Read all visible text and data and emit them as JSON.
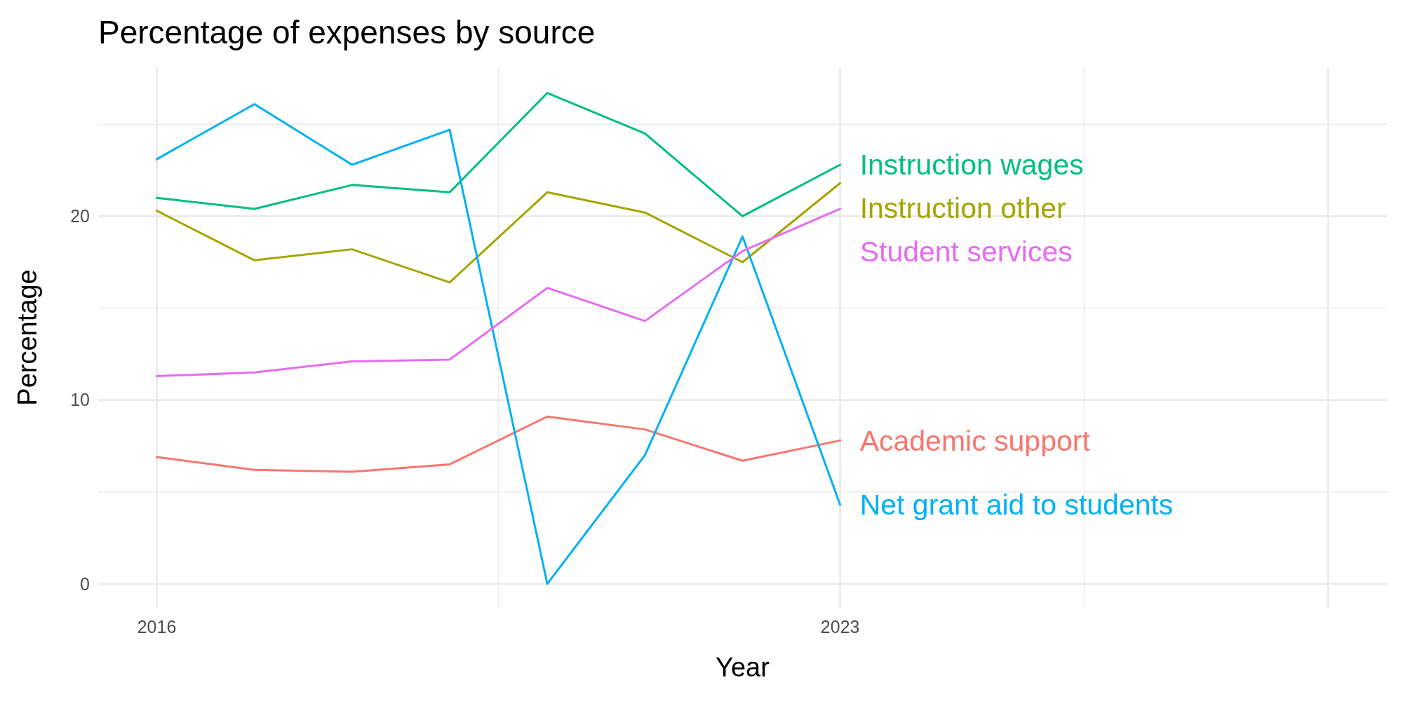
{
  "chart_data": {
    "type": "line",
    "title": "Percentage of expenses by source",
    "xlabel": "Year",
    "ylabel": "Percentage",
    "x": [
      2016,
      2017,
      2018,
      2019,
      2020,
      2021,
      2022,
      2023
    ],
    "xlim": [
      2015.4,
      2028.6
    ],
    "xticks": [
      2016,
      {
        "value": 2019.5,
        "label": null
      },
      2023,
      {
        "value": 2025.5,
        "label": null
      },
      {
        "value": 2028,
        "label": null
      }
    ],
    "ylim": [
      -1.3,
      28.1
    ],
    "yticks": [
      0,
      {
        "value": 5,
        "label": null
      },
      10,
      {
        "value": 15,
        "label": null
      },
      20,
      {
        "value": 25,
        "label": null
      }
    ],
    "grid": true,
    "marker": "none",
    "line_style": "solid",
    "series": [
      {
        "name": "Academic support",
        "color": "#f8766d",
        "values": [
          6.9,
          6.2,
          6.1,
          6.5,
          9.1,
          8.4,
          6.7,
          7.8
        ]
      },
      {
        "name": "Instruction other",
        "color": "#a3a500",
        "values": [
          20.3,
          17.6,
          18.2,
          16.4,
          21.3,
          20.2,
          17.5,
          21.8
        ]
      },
      {
        "name": "Instruction wages",
        "color": "#00bf7d",
        "values": [
          21.0,
          20.4,
          21.7,
          21.3,
          26.7,
          24.5,
          20.0,
          22.8
        ]
      },
      {
        "name": "Net grant aid to students",
        "color": "#00b0f6",
        "values": [
          23.1,
          26.1,
          22.8,
          24.7,
          0,
          7.0,
          18.9,
          4.3
        ]
      },
      {
        "name": "Student services",
        "color": "#e76bf3",
        "values": [
          11.3,
          11.5,
          12.1,
          12.2,
          16.1,
          14.3,
          18.1,
          20.4
        ]
      }
    ]
  }
}
